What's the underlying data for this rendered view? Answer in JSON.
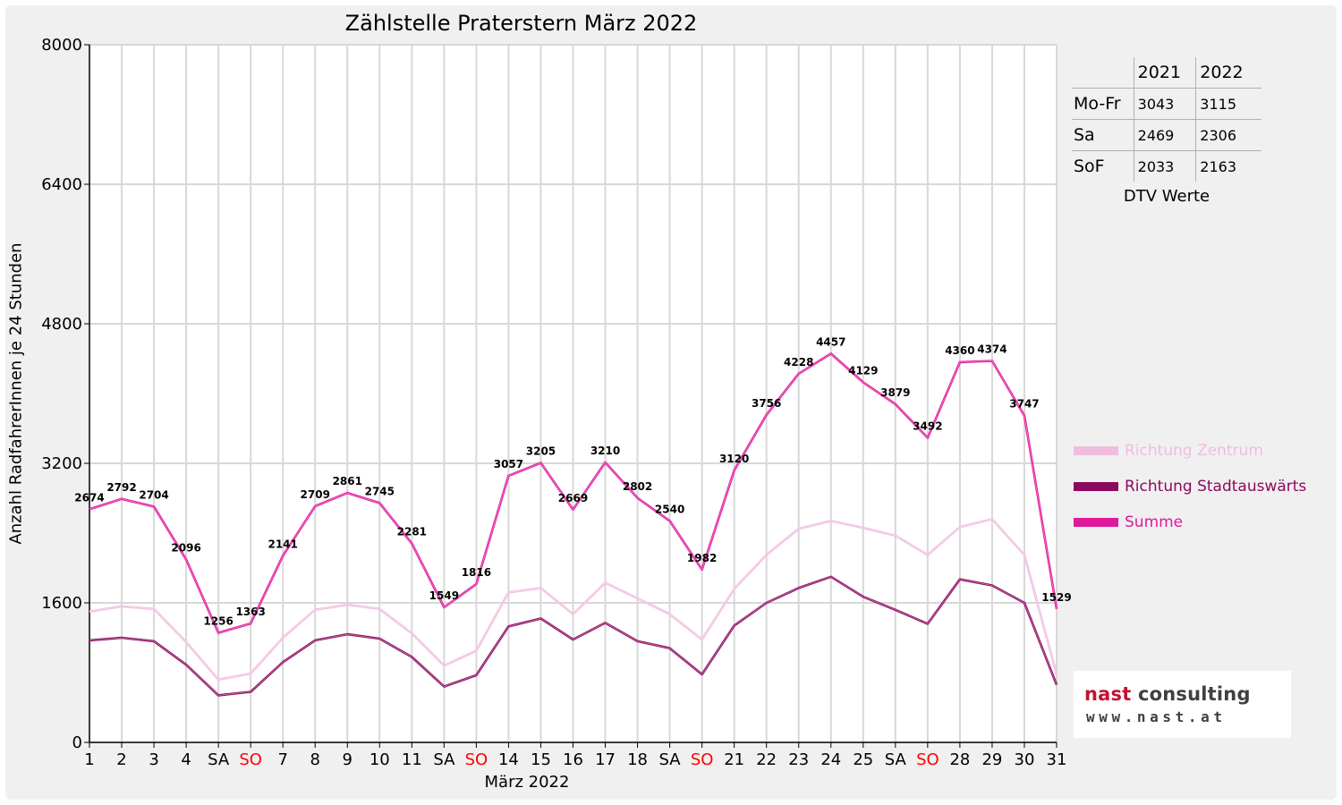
{
  "title": "Zählstelle Praterstern März 2022",
  "ylabel": "Anzahl RadfahrerInnen je 24 Stunden",
  "xlabel": "März 2022",
  "dtv_table": {
    "headers": [
      "",
      "2021",
      "2022"
    ],
    "rows": [
      {
        "label": "Mo-Fr",
        "v2021": "3043",
        "v2022": "3115"
      },
      {
        "label": "Sa",
        "v2021": "2469",
        "v2022": "2306"
      },
      {
        "label": "SoF",
        "v2021": "2033",
        "v2022": "2163"
      }
    ],
    "caption": "DTV Werte"
  },
  "legend": [
    {
      "label": "Richtung Zentrum",
      "color": "#f0bde0"
    },
    {
      "label": "Richtung Stadtauswärts",
      "color": "#8b0a5e"
    },
    {
      "label": "Summe",
      "color": "#e0189b"
    }
  ],
  "logo": {
    "name_part1": "nast ",
    "name_part2": "consulting",
    "url": "www.nast.at"
  },
  "chart_data": {
    "type": "line",
    "ylim": [
      0,
      8000
    ],
    "yticks": [
      "0",
      "1600",
      "3200",
      "4800",
      "6400",
      "8000"
    ],
    "categories": [
      "1",
      "2",
      "3",
      "4",
      "SA",
      "SO",
      "7",
      "8",
      "9",
      "10",
      "11",
      "SA",
      "SO",
      "14",
      "15",
      "16",
      "17",
      "18",
      "SA",
      "SO",
      "21",
      "22",
      "23",
      "24",
      "25",
      "SA",
      "SO",
      "28",
      "29",
      "30",
      "31"
    ],
    "highlight_color": "#ff0000",
    "highlighted_categories": [
      "SO"
    ],
    "grid": true,
    "legend_position": "right",
    "series": [
      {
        "name": "Richtung Zentrum",
        "color": "#f0bde0",
        "values": [
          1500,
          1560,
          1530,
          1150,
          720,
          790,
          1200,
          1520,
          1580,
          1530,
          1250,
          880,
          1050,
          1720,
          1770,
          1470,
          1830,
          1650,
          1470,
          1180,
          1760,
          2150,
          2450,
          2540,
          2460,
          2370,
          2150,
          2470,
          2560,
          2150,
          780
        ]
      },
      {
        "name": "Richtung Stadtauswärts",
        "color": "#8b0a5e",
        "values": [
          1170,
          1200,
          1160,
          890,
          540,
          580,
          920,
          1170,
          1240,
          1190,
          980,
          640,
          770,
          1330,
          1420,
          1180,
          1370,
          1160,
          1080,
          780,
          1340,
          1600,
          1770,
          1900,
          1670,
          1520,
          1360,
          1870,
          1800,
          1600,
          660
        ]
      },
      {
        "name": "Summe",
        "color": "#e0189b",
        "values": [
          2674,
          2792,
          2704,
          2096,
          1256,
          1363,
          2141,
          2709,
          2861,
          2745,
          2281,
          1549,
          1816,
          3057,
          3205,
          2669,
          3210,
          2802,
          2540,
          1982,
          3120,
          3756,
          4228,
          4457,
          4129,
          3879,
          3492,
          4360,
          4374,
          3747,
          1529
        ],
        "labels": [
          "2674",
          "2792",
          "2704",
          "2096",
          "1256",
          "1363",
          "2141",
          "2709",
          "2861",
          "2745",
          "2281",
          "1549",
          "1816",
          "3057",
          "3205",
          "2669",
          "3210",
          "2802",
          "2540",
          "1982",
          "3120",
          "3756",
          "4228",
          "4457",
          "4129",
          "3879",
          "3492",
          "4360",
          "4374",
          "3747",
          "1529"
        ]
      }
    ]
  }
}
